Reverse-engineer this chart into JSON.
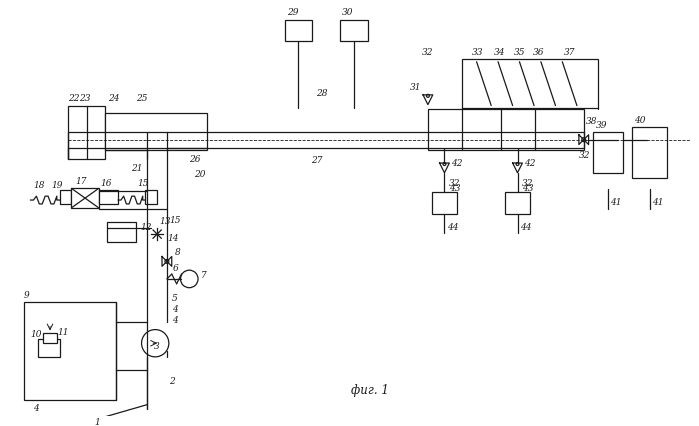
{
  "bg_color": "#ffffff",
  "line_color": "#1a1a1a",
  "title_text": "фиг. 1",
  "fig_width": 6.99,
  "fig_height": 4.27
}
